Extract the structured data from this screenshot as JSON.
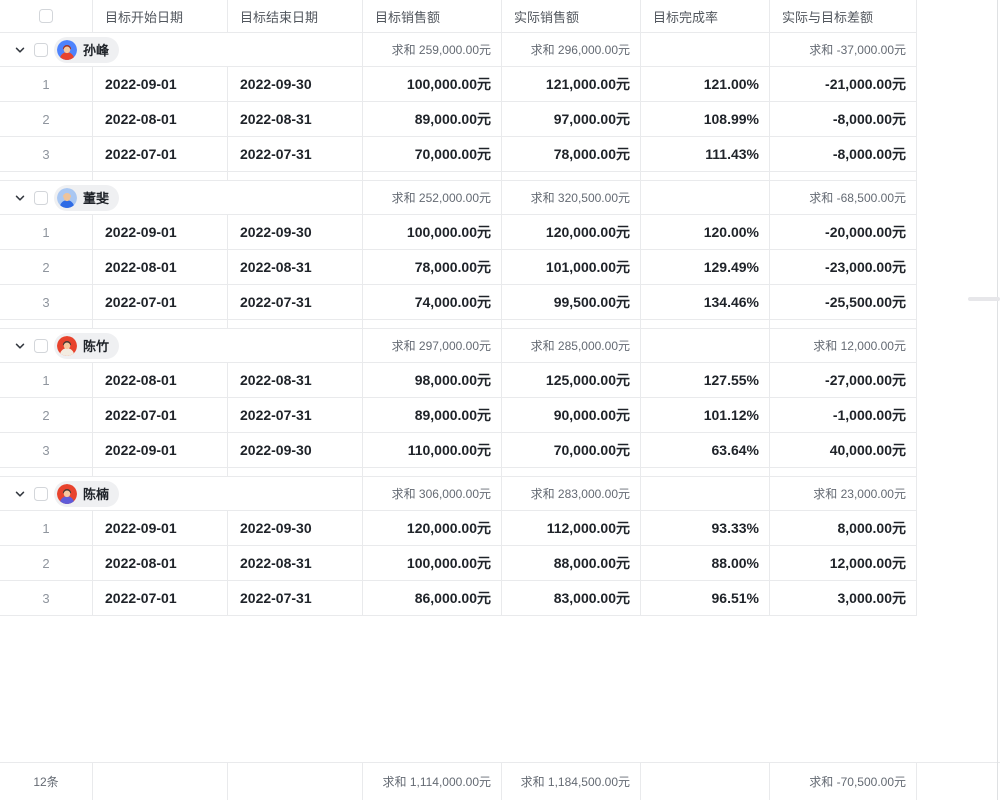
{
  "table": {
    "columns": [
      {
        "label": ""
      },
      {
        "label": "目标开始日期"
      },
      {
        "label": "目标结束日期"
      },
      {
        "label": "目标销售额"
      },
      {
        "label": "实际销售额"
      },
      {
        "label": "目标完成率"
      },
      {
        "label": "实际与目标差额"
      }
    ],
    "sum_prefix": "求和",
    "groups": [
      {
        "name": "孙峰",
        "avatar": {
          "bg": "#4e83fd",
          "hair": "#a03326",
          "skin": "#f6c9a0",
          "shirt": "#e8432d"
        },
        "sum_target": "求和 259,000.00元",
        "sum_actual": "求和 296,000.00元",
        "sum_diff": "求和 -37,000.00元",
        "rows": [
          {
            "index": "1",
            "start": "2022-09-01",
            "end": "2022-09-30",
            "target": "100,000.00元",
            "actual": "121,000.00元",
            "rate": "121.00%",
            "diff": "-21,000.00元"
          },
          {
            "index": "2",
            "start": "2022-08-01",
            "end": "2022-08-31",
            "target": "89,000.00元",
            "actual": "97,000.00元",
            "rate": "108.99%",
            "diff": "-8,000.00元"
          },
          {
            "index": "3",
            "start": "2022-07-01",
            "end": "2022-07-31",
            "target": "70,000.00元",
            "actual": "78,000.00元",
            "rate": "111.43%",
            "diff": "-8,000.00元"
          }
        ]
      },
      {
        "name": "董斐",
        "avatar": {
          "bg": "#a9c7f2",
          "hair": "#eec39a",
          "skin": "#eec39a",
          "shirt": "#2e6be5"
        },
        "sum_target": "求和 252,000.00元",
        "sum_actual": "求和 320,500.00元",
        "sum_diff": "求和 -68,500.00元",
        "rows": [
          {
            "index": "1",
            "start": "2022-09-01",
            "end": "2022-09-30",
            "target": "100,000.00元",
            "actual": "120,000.00元",
            "rate": "120.00%",
            "diff": "-20,000.00元"
          },
          {
            "index": "2",
            "start": "2022-08-01",
            "end": "2022-08-31",
            "target": "78,000.00元",
            "actual": "101,000.00元",
            "rate": "129.49%",
            "diff": "-23,000.00元"
          },
          {
            "index": "3",
            "start": "2022-07-01",
            "end": "2022-07-31",
            "target": "74,000.00元",
            "actual": "99,500.00元",
            "rate": "134.46%",
            "diff": "-25,500.00元"
          }
        ]
      },
      {
        "name": "陈竹",
        "avatar": {
          "bg": "#e8432d",
          "hair": "#473a33",
          "skin": "#f6c9a0",
          "shirt": "#f3ece1"
        },
        "sum_target": "求和 297,000.00元",
        "sum_actual": "求和 285,000.00元",
        "sum_diff": "求和 12,000.00元",
        "rows": [
          {
            "index": "1",
            "start": "2022-08-01",
            "end": "2022-08-31",
            "target": "98,000.00元",
            "actual": "125,000.00元",
            "rate": "127.55%",
            "diff": "-27,000.00元"
          },
          {
            "index": "2",
            "start": "2022-07-01",
            "end": "2022-07-31",
            "target": "89,000.00元",
            "actual": "90,000.00元",
            "rate": "101.12%",
            "diff": "-1,000.00元"
          },
          {
            "index": "3",
            "start": "2022-09-01",
            "end": "2022-09-30",
            "target": "110,000.00元",
            "actual": "70,000.00元",
            "rate": "63.64%",
            "diff": "40,000.00元"
          }
        ]
      },
      {
        "name": "陈楠",
        "avatar": {
          "bg": "#e8432d",
          "hair": "#473a33",
          "skin": "#f6c9a0",
          "shirt": "#5f5bd8"
        },
        "sum_target": "求和 306,000.00元",
        "sum_actual": "求和 283,000.00元",
        "sum_diff": "求和 23,000.00元",
        "rows": [
          {
            "index": "1",
            "start": "2022-09-01",
            "end": "2022-09-30",
            "target": "120,000.00元",
            "actual": "112,000.00元",
            "rate": "93.33%",
            "diff": "8,000.00元"
          },
          {
            "index": "2",
            "start": "2022-08-01",
            "end": "2022-08-31",
            "target": "100,000.00元",
            "actual": "88,000.00元",
            "rate": "88.00%",
            "diff": "12,000.00元"
          },
          {
            "index": "3",
            "start": "2022-07-01",
            "end": "2022-07-31",
            "target": "86,000.00元",
            "actual": "83,000.00元",
            "rate": "96.51%",
            "diff": "3,000.00元"
          }
        ]
      }
    ],
    "footer": {
      "count": "12条",
      "sum_target": "求和 1,114,000.00元",
      "sum_actual": "求和 1,184,500.00元",
      "sum_diff": "求和 -70,500.00元"
    }
  }
}
